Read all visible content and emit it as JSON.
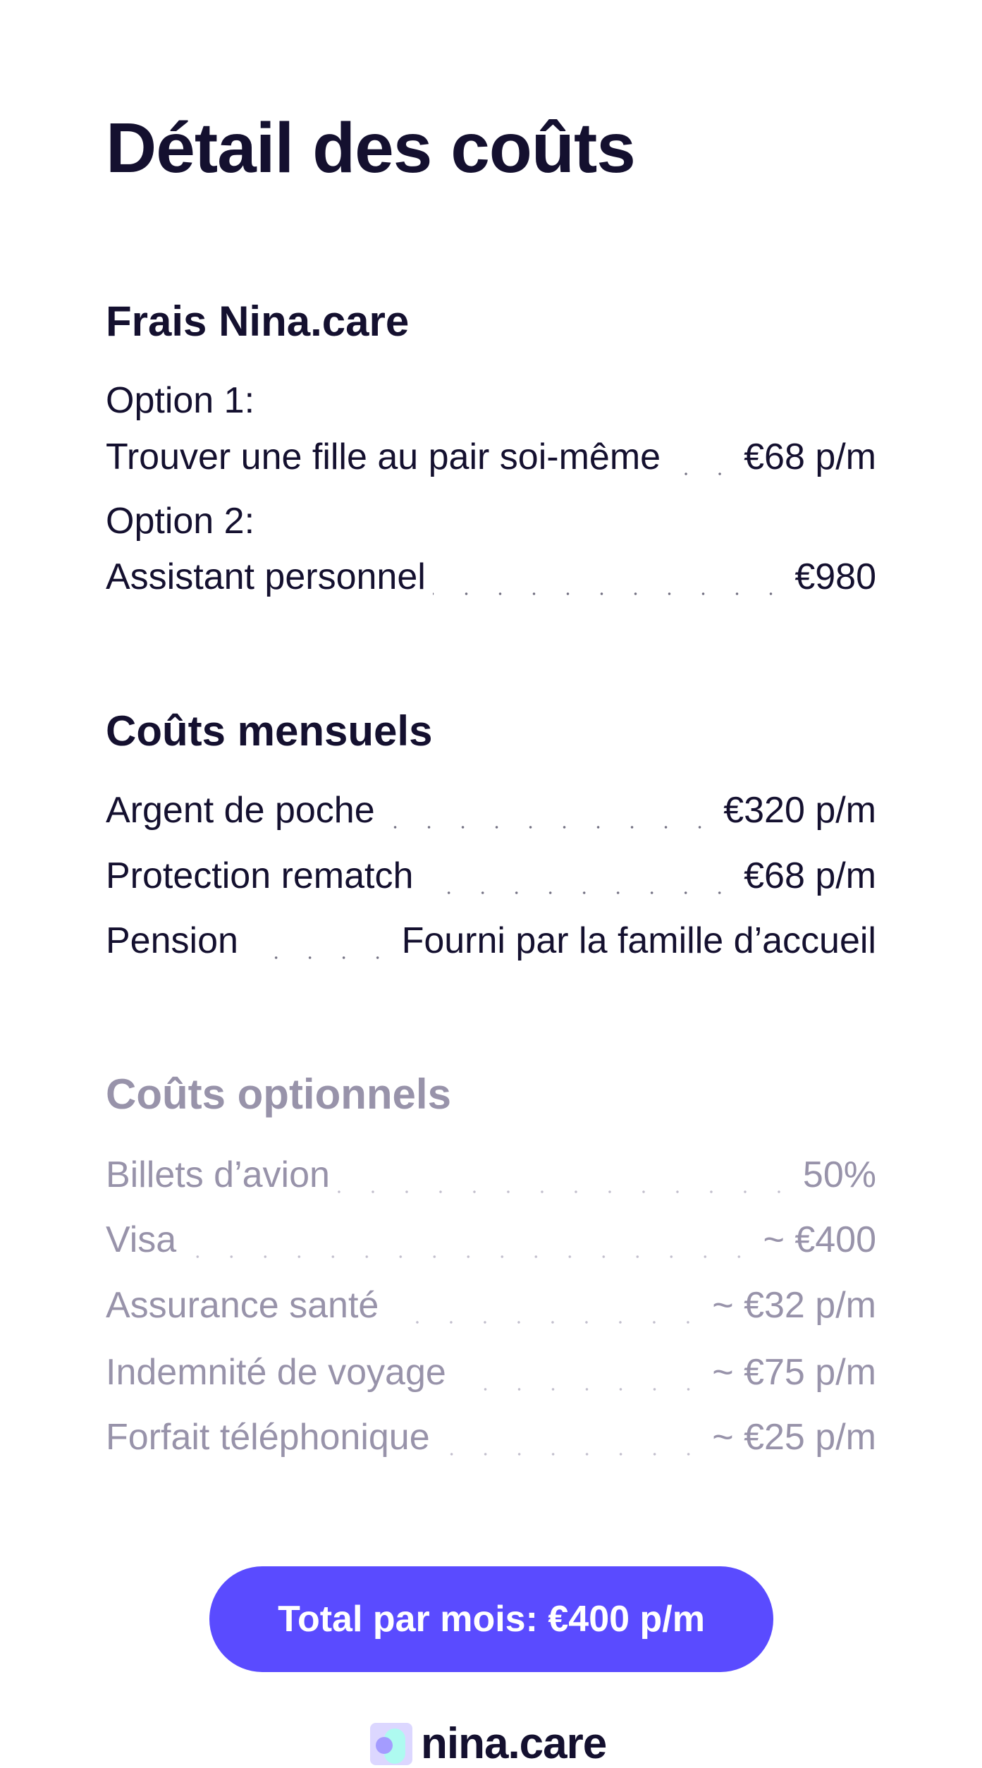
{
  "title": "Détail des coûts",
  "frais": {
    "heading": "Frais Nina.care",
    "option1_label": "Option 1:",
    "option1_name": "Trouver une fille au pair soi-même",
    "option1_price": "€68 p/m",
    "option2_label": "Option 2:",
    "option2_name": "Assistant personnel",
    "option2_price": "€980"
  },
  "mensuels": {
    "heading": "Coûts mensuels",
    "items": [
      {
        "name": "Argent de poche",
        "value": "€320 p/m"
      },
      {
        "name": "Protection rematch",
        "value": "€68 p/m"
      },
      {
        "name": "Pension",
        "value": "Fourni par la famille d’accueil"
      }
    ]
  },
  "optionnels": {
    "heading": "Coûts optionnels",
    "items": [
      {
        "name": "Billets d’avion",
        "value": "50%"
      },
      {
        "name": "Visa",
        "value": "~ €400"
      },
      {
        "name": "Assurance santé",
        "value": "~ €32 p/m"
      },
      {
        "name": "Indemnité de voyage",
        "value": "~ €75 p/m"
      },
      {
        "name": "Forfait téléphonique",
        "value": "~ €25 p/m"
      }
    ]
  },
  "total_button": "Total par mois: €400 p/m",
  "logo": "nina.care",
  "colors": {
    "accent": "#5a4bff",
    "text": "#14102f",
    "muted": "#9893aa"
  }
}
